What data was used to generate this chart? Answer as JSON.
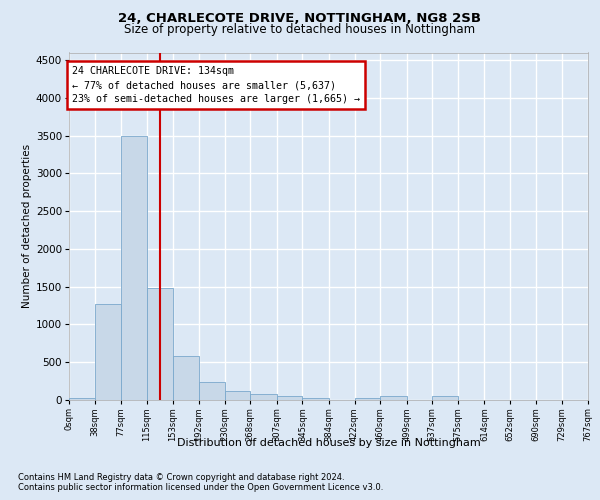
{
  "title1": "24, CHARLECOTE DRIVE, NOTTINGHAM, NG8 2SB",
  "title2": "Size of property relative to detached houses in Nottingham",
  "xlabel": "Distribution of detached houses by size in Nottingham",
  "ylabel": "Number of detached properties",
  "footnote1": "Contains HM Land Registry data © Crown copyright and database right 2024.",
  "footnote2": "Contains public sector information licensed under the Open Government Licence v3.0.",
  "annotation_line1": "24 CHARLECOTE DRIVE: 134sqm",
  "annotation_line2": "← 77% of detached houses are smaller (5,637)",
  "annotation_line3": "23% of semi-detached houses are larger (1,665) →",
  "bar_color": "#c8d8e8",
  "bar_edge_color": "#7aa8cc",
  "vline_color": "#cc0000",
  "vline_x": 134,
  "bin_edges": [
    0,
    38,
    77,
    115,
    153,
    192,
    230,
    268,
    307,
    345,
    384,
    422,
    460,
    499,
    537,
    575,
    614,
    652,
    690,
    729,
    767
  ],
  "bar_heights": [
    30,
    1270,
    3500,
    1480,
    580,
    240,
    115,
    80,
    55,
    30,
    0,
    30,
    55,
    0,
    55,
    0,
    0,
    0,
    0,
    0
  ],
  "ylim": [
    0,
    4600
  ],
  "yticks": [
    0,
    500,
    1000,
    1500,
    2000,
    2500,
    3000,
    3500,
    4000,
    4500
  ],
  "background_color": "#dce8f5",
  "plot_bg_color": "#dce8f5",
  "grid_color": "#ffffff",
  "annotation_box_color": "#ffffff",
  "annotation_box_edge": "#cc0000"
}
